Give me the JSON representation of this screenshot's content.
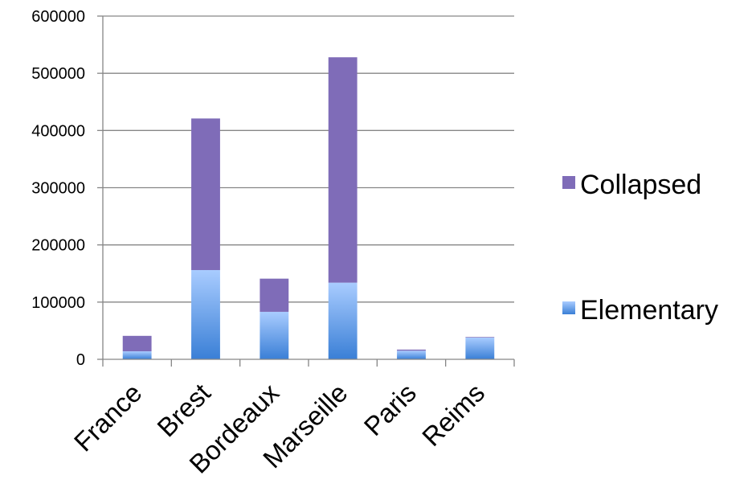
{
  "chart_data": {
    "type": "bar",
    "stacked": true,
    "categories": [
      "France",
      "Brest",
      "Bordeaux",
      "Marseille",
      "Paris",
      "Reims"
    ],
    "series": [
      {
        "name": "Elementary",
        "values": [
          14000,
          156000,
          83000,
          134000,
          15000,
          38000
        ],
        "color": "#4a8fe0"
      },
      {
        "name": "Collapsed",
        "values": [
          27000,
          265000,
          58000,
          394000,
          2000,
          1000
        ],
        "color": "#7f6cb8"
      }
    ],
    "yticks": [
      "0",
      "100000",
      "200000",
      "300000",
      "400000",
      "500000",
      "600000"
    ],
    "ylim": [
      0,
      600000
    ],
    "grid": true,
    "legend": {
      "position": "right",
      "entries": [
        "Collapsed",
        "Elementary"
      ]
    }
  }
}
